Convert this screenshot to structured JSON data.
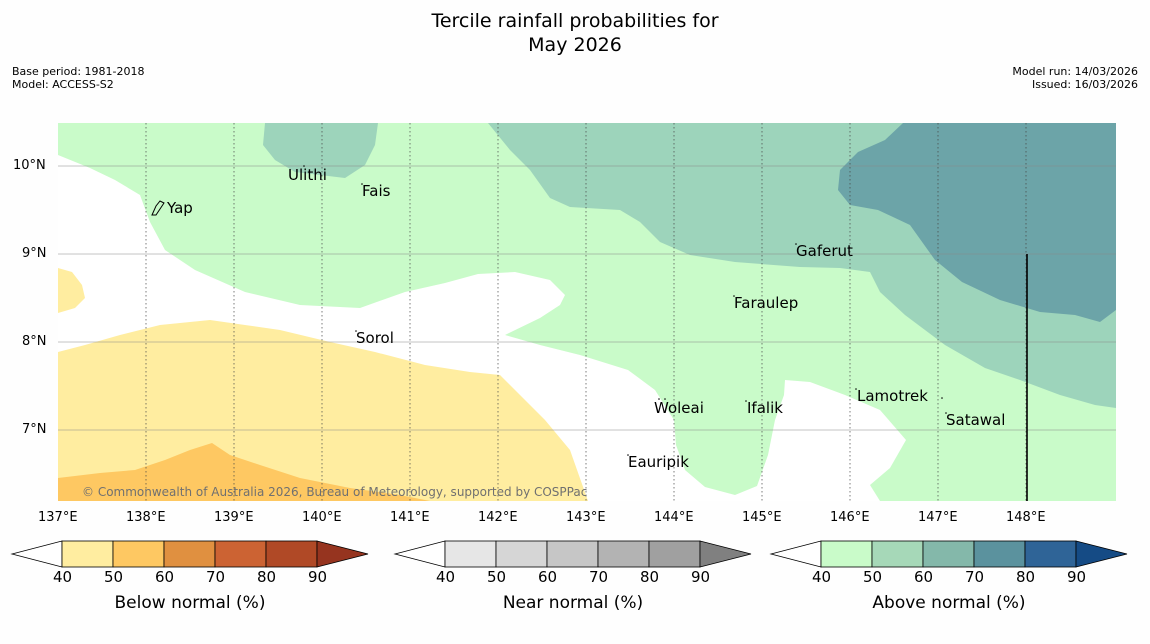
{
  "header": {
    "title_line1": "Tercile rainfall probabilities for",
    "title_line2": "May 2026",
    "base_period": "Base period: 1981-2018",
    "model": "Model: ACCESS-S2",
    "model_run": "Model run: 14/03/2026",
    "issued": "Issued: 16/03/2026"
  },
  "map": {
    "lat_labels": [
      "10°N",
      "9°N",
      "8°N",
      "7°N"
    ],
    "lon_labels": [
      "137°E",
      "138°E",
      "139°E",
      "140°E",
      "141°E",
      "142°E",
      "143°E",
      "144°E",
      "145°E",
      "146°E",
      "147°E",
      "148°E"
    ],
    "places": [
      "Ulithi",
      "Fais",
      "Yap",
      "Gaferut",
      "Faraulep",
      "Sorol",
      "Woleai",
      "Ifalik",
      "Lamotrek",
      "Satawal",
      "Eauripik"
    ],
    "copyright": "© Commonwealth of Australia 2026, Bureau of Meteorology, supported by COSPPac"
  },
  "colorbars": {
    "below": {
      "label": "Below normal (%)",
      "ticks": [
        "40",
        "50",
        "60",
        "70",
        "80",
        "90"
      ],
      "colors": [
        "#ffeda0",
        "#fec862",
        "#e09040",
        "#cc6333",
        "#b04926",
        "#96341f"
      ]
    },
    "near": {
      "label": "Near normal (%)",
      "ticks": [
        "40",
        "50",
        "60",
        "70",
        "80",
        "90"
      ],
      "colors": [
        "#e6e6e6",
        "#d6d6d6",
        "#c6c6c6",
        "#b3b3b3",
        "#a0a0a0",
        "#808080"
      ]
    },
    "above": {
      "label": "Above normal (%)",
      "ticks": [
        "40",
        "50",
        "60",
        "70",
        "80",
        "90"
      ],
      "colors": [
        "#c9fbc9",
        "#a6d8b8",
        "#84b8aa",
        "#5b929e",
        "#2f6497",
        "#154b85"
      ]
    }
  }
}
